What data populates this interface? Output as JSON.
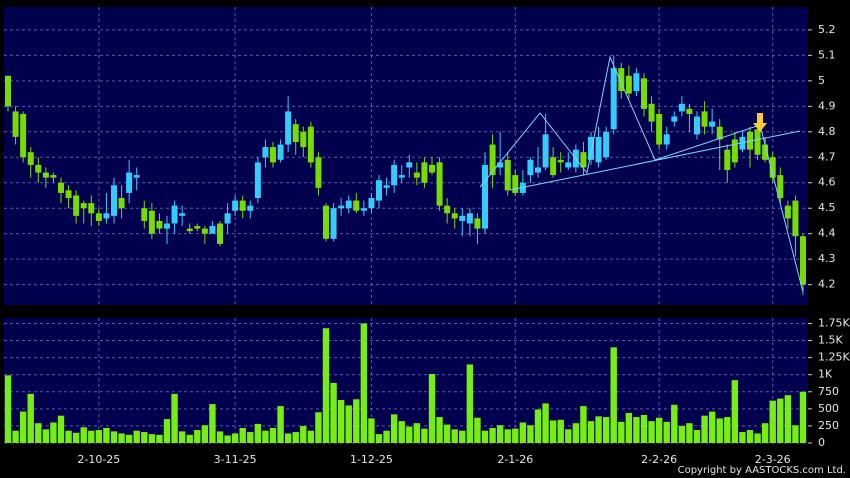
{
  "chart_data": [
    {
      "type": "candlestick",
      "up_color": "#33ccff",
      "down_color": "#77dd00",
      "grid": true,
      "ylim": [
        4.12,
        5.29
      ],
      "yticks": [
        4.2,
        4.3,
        4.4,
        4.5,
        4.6,
        4.7,
        4.8,
        4.9,
        5,
        5.1,
        5.2
      ],
      "open": [
        5.02,
        4.88,
        4.87,
        4.72,
        4.67,
        4.64,
        4.63,
        4.6,
        4.57,
        4.55,
        4.52,
        4.52,
        4.48,
        4.46,
        4.47,
        4.54,
        4.56,
        4.62,
        4.5,
        4.49,
        4.45,
        4.42,
        4.44,
        4.47,
        4.42,
        4.43,
        4.42,
        4.4,
        4.44,
        4.44,
        4.49,
        4.53,
        4.49,
        4.54,
        4.7,
        4.74,
        4.69,
        4.75,
        4.83,
        4.8,
        4.82,
        4.7,
        4.51,
        4.38,
        4.5,
        4.5,
        4.53,
        4.49,
        4.5,
        4.53,
        4.58,
        4.59,
        4.62,
        4.66,
        4.64,
        4.68,
        4.67,
        4.68,
        4.51,
        4.48,
        4.45,
        4.44,
        4.46,
        4.42,
        4.75,
        4.66,
        4.69,
        4.63,
        4.56,
        4.63,
        4.64,
        4.66,
        4.7,
        4.69,
        4.66,
        4.66,
        4.72,
        4.69,
        4.68,
        4.7,
        4.81,
        5.05,
        5.02,
        4.96,
        5.01,
        4.91,
        4.87,
        4.75,
        4.84,
        4.88,
        4.89,
        4.79,
        4.88,
        4.82,
        4.82,
        4.73,
        4.77,
        4.73,
        4.8,
        4.81,
        4.75,
        4.7,
        4.63,
        4.51,
        4.53,
        4.39
      ],
      "high": [
        5.02,
        4.9,
        4.88,
        4.74,
        4.7,
        4.66,
        4.64,
        4.62,
        4.59,
        4.57,
        4.53,
        4.55,
        4.5,
        4.56,
        4.62,
        4.59,
        4.69,
        4.66,
        4.53,
        4.52,
        4.48,
        4.47,
        4.53,
        4.51,
        4.44,
        4.44,
        4.43,
        4.45,
        4.45,
        4.52,
        4.55,
        4.55,
        4.53,
        4.7,
        4.77,
        4.76,
        4.77,
        4.94,
        4.85,
        4.82,
        4.84,
        4.72,
        4.52,
        4.52,
        4.54,
        4.55,
        4.56,
        4.53,
        4.56,
        4.63,
        4.62,
        4.69,
        4.67,
        4.71,
        4.68,
        4.7,
        4.7,
        4.7,
        4.54,
        4.5,
        4.5,
        4.5,
        4.48,
        4.72,
        4.79,
        4.8,
        4.72,
        4.65,
        4.65,
        4.7,
        4.74,
        4.87,
        4.74,
        4.72,
        4.72,
        4.75,
        4.76,
        4.8,
        4.82,
        4.82,
        5.1,
        5.07,
        5.06,
        5.05,
        5.03,
        4.94,
        4.89,
        4.82,
        4.88,
        4.94,
        4.91,
        4.88,
        4.92,
        4.89,
        4.85,
        4.75,
        4.8,
        4.8,
        4.82,
        4.83,
        4.78,
        4.72,
        4.66,
        4.53,
        4.55,
        4.4
      ],
      "low": [
        4.88,
        4.75,
        4.68,
        4.62,
        4.6,
        4.58,
        4.6,
        4.52,
        4.5,
        4.44,
        4.44,
        4.43,
        4.43,
        4.44,
        4.44,
        4.46,
        4.52,
        4.57,
        4.42,
        4.38,
        4.4,
        4.36,
        4.4,
        4.43,
        4.4,
        4.41,
        4.36,
        4.4,
        4.35,
        4.4,
        4.47,
        4.46,
        4.46,
        4.52,
        4.66,
        4.66,
        4.68,
        4.72,
        4.71,
        4.7,
        4.66,
        4.55,
        4.37,
        4.37,
        4.47,
        4.48,
        4.48,
        4.47,
        4.48,
        4.5,
        4.55,
        4.56,
        4.6,
        4.62,
        4.59,
        4.58,
        4.63,
        4.49,
        4.44,
        4.42,
        4.39,
        4.39,
        4.36,
        4.4,
        4.58,
        4.63,
        4.55,
        4.55,
        4.55,
        4.6,
        4.62,
        4.65,
        4.62,
        4.64,
        4.65,
        4.64,
        4.63,
        4.67,
        4.66,
        4.69,
        4.79,
        4.93,
        4.93,
        4.94,
        4.86,
        4.8,
        4.73,
        4.73,
        4.82,
        4.86,
        4.8,
        4.77,
        4.79,
        4.79,
        4.65,
        4.6,
        4.66,
        4.72,
        4.66,
        4.69,
        4.68,
        4.6,
        4.52,
        4.42,
        4.31,
        4.16
      ],
      "close": [
        4.9,
        4.78,
        4.7,
        4.67,
        4.64,
        4.62,
        4.62,
        4.56,
        4.54,
        4.47,
        4.5,
        4.48,
        4.45,
        4.48,
        4.59,
        4.5,
        4.64,
        4.63,
        4.45,
        4.4,
        4.42,
        4.44,
        4.51,
        4.48,
        4.41,
        4.42,
        4.4,
        4.43,
        4.36,
        4.48,
        4.53,
        4.49,
        4.51,
        4.68,
        4.74,
        4.68,
        4.75,
        4.88,
        4.76,
        4.74,
        4.68,
        4.58,
        4.38,
        4.5,
        4.51,
        4.53,
        4.49,
        4.5,
        4.54,
        4.61,
        4.59,
        4.67,
        4.63,
        4.68,
        4.62,
        4.6,
        4.64,
        4.51,
        4.48,
        4.46,
        4.47,
        4.48,
        4.42,
        4.67,
        4.63,
        4.68,
        4.57,
        4.56,
        4.6,
        4.69,
        4.66,
        4.79,
        4.63,
        4.68,
        4.68,
        4.73,
        4.66,
        4.78,
        4.78,
        4.8,
        5.05,
        4.96,
        4.95,
        5.03,
        4.89,
        4.84,
        4.75,
        4.79,
        4.86,
        4.91,
        4.87,
        4.86,
        4.82,
        4.84,
        4.77,
        4.65,
        4.68,
        4.78,
        4.73,
        4.71,
        4.69,
        4.62,
        4.54,
        4.46,
        4.39,
        4.2
      ]
    },
    {
      "type": "bar",
      "color": "#77ee11",
      "grid": true,
      "ylim": [
        0,
        1830
      ],
      "yticks": [
        0,
        250,
        500,
        750,
        {
          "value": 1000,
          "label": "1K"
        },
        {
          "value": 1250,
          "label": "1.25K"
        },
        {
          "value": 1500,
          "label": "1.5K"
        },
        {
          "value": 1750,
          "label": "1.75K"
        }
      ],
      "categories": [
        null,
        null,
        null,
        null,
        null,
        null,
        null,
        null,
        null,
        null,
        null,
        null,
        "2-10-25",
        null,
        null,
        null,
        null,
        null,
        null,
        null,
        null,
        null,
        null,
        null,
        null,
        null,
        null,
        null,
        null,
        null,
        "3-11-25",
        null,
        null,
        null,
        null,
        null,
        null,
        null,
        null,
        null,
        null,
        null,
        null,
        null,
        null,
        null,
        null,
        null,
        "1-12-25",
        null,
        null,
        null,
        null,
        null,
        null,
        null,
        null,
        null,
        null,
        null,
        null,
        null,
        null,
        null,
        null,
        null,
        null,
        "2-1-26",
        null,
        null,
        null,
        null,
        null,
        null,
        null,
        null,
        null,
        null,
        null,
        null,
        null,
        null,
        null,
        null,
        null,
        null,
        "2-2-26",
        null,
        null,
        null,
        null,
        null,
        null,
        null,
        null,
        null,
        null,
        null,
        null,
        null,
        null,
        "2-3-26",
        null,
        null,
        null,
        null
      ],
      "values": [
        990,
        180,
        460,
        720,
        290,
        200,
        300,
        400,
        180,
        150,
        230,
        180,
        190,
        220,
        170,
        140,
        120,
        180,
        160,
        130,
        120,
        350,
        720,
        170,
        120,
        190,
        260,
        570,
        170,
        110,
        140,
        220,
        160,
        280,
        180,
        220,
        540,
        140,
        160,
        250,
        180,
        450,
        1680,
        880,
        630,
        550,
        640,
        1750,
        360,
        130,
        180,
        420,
        320,
        240,
        290,
        210,
        1010,
        380,
        270,
        200,
        180,
        1150,
        370,
        180,
        220,
        260,
        200,
        210,
        300,
        260,
        490,
        580,
        330,
        340,
        200,
        290,
        540,
        320,
        390,
        380,
        1400,
        310,
        440,
        380,
        410,
        320,
        370,
        310,
        560,
        250,
        290,
        190,
        400,
        460,
        360,
        380,
        920,
        160,
        190,
        140,
        290,
        620,
        650,
        700,
        260,
        750
      ],
      "copyright": "Copyright by AASTOCKS.com Ltd."
    }
  ]
}
